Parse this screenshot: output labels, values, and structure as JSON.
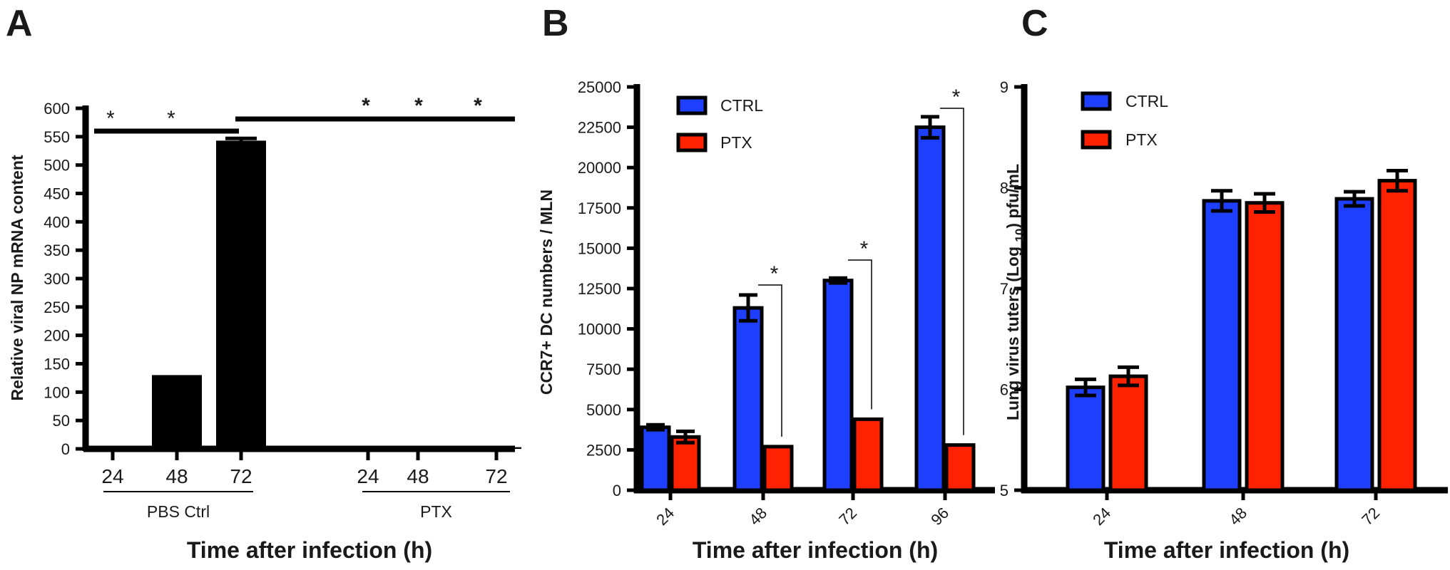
{
  "chart_data": [
    {
      "type": "bar",
      "panel": "A",
      "xlabel": "Time after infection (h)",
      "ylabel": "Relative viral NP mRNA content",
      "ylim": [
        0,
        600
      ],
      "yticks": [
        "0",
        "50",
        "100",
        "150",
        "200",
        "250",
        "300",
        "350",
        "400",
        "450",
        "500",
        "550",
        "600"
      ],
      "categories": [
        "24",
        "48",
        "72",
        "24",
        "48",
        "72"
      ],
      "groups": [
        {
          "label": "PBS Ctrl",
          "categories": [
            "24",
            "48",
            "72"
          ]
        },
        {
          "label": "PTX",
          "categories": [
            "24",
            "48",
            "72"
          ]
        }
      ],
      "values": [
        0,
        130,
        543,
        0,
        2,
        3
      ],
      "error": [
        0,
        0,
        4,
        0,
        0,
        0
      ],
      "color": "#000000",
      "annotations": [
        "*",
        "*",
        "*",
        "*",
        "*"
      ]
    },
    {
      "type": "bar",
      "panel": "B",
      "xlabel": "Time after infection (h)",
      "ylabel": "CCR7+ DC numbers / MLN",
      "ylim": [
        0,
        25000
      ],
      "yticks": [
        "0",
        "2500",
        "5000",
        "7500",
        "10000",
        "12500",
        "15000",
        "17500",
        "20000",
        "22500",
        "25000"
      ],
      "categories": [
        "24",
        "48",
        "72",
        "96"
      ],
      "series": [
        {
          "name": "CTRL",
          "color": "#1f3fff",
          "values": [
            3900,
            11300,
            13000,
            22500
          ],
          "error": [
            150,
            800,
            150,
            650
          ]
        },
        {
          "name": "PTX",
          "color": "#ff2200",
          "values": [
            3300,
            2700,
            4400,
            2800
          ],
          "error": [
            350,
            0,
            0,
            0
          ]
        }
      ],
      "legend": "top-left",
      "annotations": [
        "*",
        "*",
        "*"
      ]
    },
    {
      "type": "bar",
      "panel": "C",
      "xlabel": "Time after infection (h)",
      "ylabel_parts": [
        "Lung virus tuters (Log ",
        "10",
        ") pfu/mL"
      ],
      "ylim": [
        5,
        9
      ],
      "yticks": [
        "5",
        "6",
        "7",
        "8",
        "9"
      ],
      "categories": [
        "24",
        "48",
        "72"
      ],
      "series": [
        {
          "name": "CTRL",
          "color": "#1f3fff",
          "values": [
            6.02,
            7.87,
            7.89
          ],
          "error": [
            0.08,
            0.1,
            0.07
          ]
        },
        {
          "name": "PTX",
          "color": "#ff2200",
          "values": [
            6.13,
            7.85,
            8.07
          ],
          "error": [
            0.09,
            0.09,
            0.1
          ]
        }
      ],
      "legend": "top-left"
    }
  ]
}
